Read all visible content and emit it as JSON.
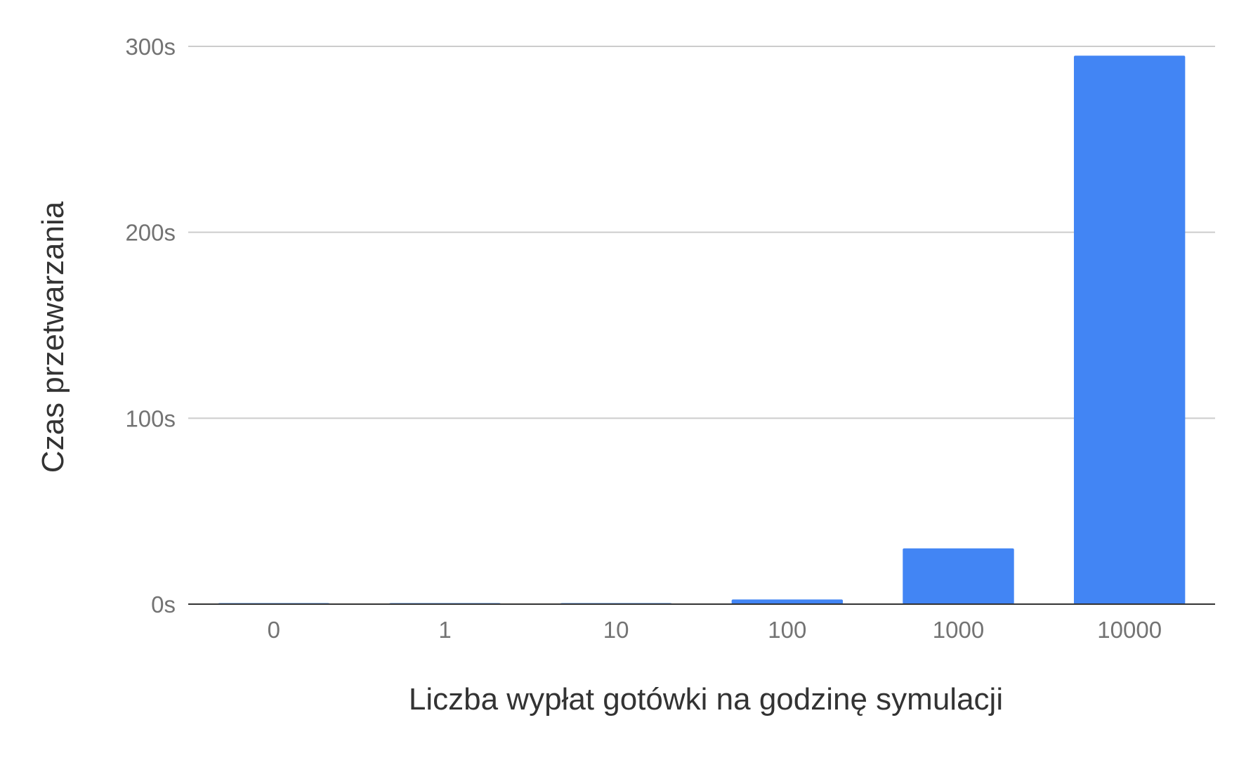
{
  "chart_data": {
    "type": "bar",
    "title": "",
    "xlabel": "Liczba wypłat gotówki na godzinę symulacji",
    "ylabel": "Czas przetwarzania",
    "categories": [
      "0",
      "1",
      "10",
      "100",
      "1000",
      "10000"
    ],
    "values": [
      0.3,
      0.3,
      0.3,
      2.5,
      30,
      295
    ],
    "y_ticks": [
      0,
      100,
      200,
      300
    ],
    "y_tick_labels": [
      "0s",
      "100s",
      "200s",
      "300s"
    ],
    "ylim": [
      0,
      300
    ],
    "grid": true,
    "legend": "none",
    "colors": {
      "bar": "#4285f4",
      "grid": "#cccccc",
      "baseline": "#333333"
    }
  }
}
